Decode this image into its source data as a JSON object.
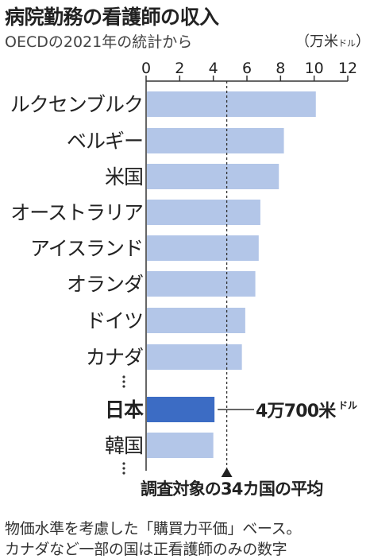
{
  "header": {
    "title": "病院勤務の看護師の収入",
    "subtitle": "OECDの2021年の統計から",
    "unit_main": "（万米",
    "unit_small": "ドル",
    "unit_close": "）"
  },
  "chart_data": {
    "type": "bar",
    "orientation": "horizontal",
    "categories": [
      "ルクセンブルク",
      "ベルギー",
      "米国",
      "オーストラリア",
      "アイスランド",
      "オランダ",
      "ドイツ",
      "カナダ",
      "日本",
      "韓国"
    ],
    "values": [
      10.1,
      8.2,
      7.9,
      6.8,
      6.7,
      6.5,
      5.9,
      5.7,
      4.07,
      4.0
    ],
    "highlight": "日本",
    "x_ticks": [
      "0",
      "2",
      "4",
      "6",
      "8",
      "10",
      "12"
    ],
    "xlim": [
      0,
      12
    ],
    "average_value": 4.8,
    "average_label": "調査対象の34カ国の平均",
    "callout_main": "4万700米",
    "callout_small": "ドル",
    "colors": {
      "bar": "#b3c6e8",
      "highlight": "#3c6cc4",
      "text": "#222222"
    }
  },
  "notes": [
    "物価水準を考慮した「購買力平価」ベース。",
    "カナダなど一部の国は正看護師のみの数字"
  ]
}
